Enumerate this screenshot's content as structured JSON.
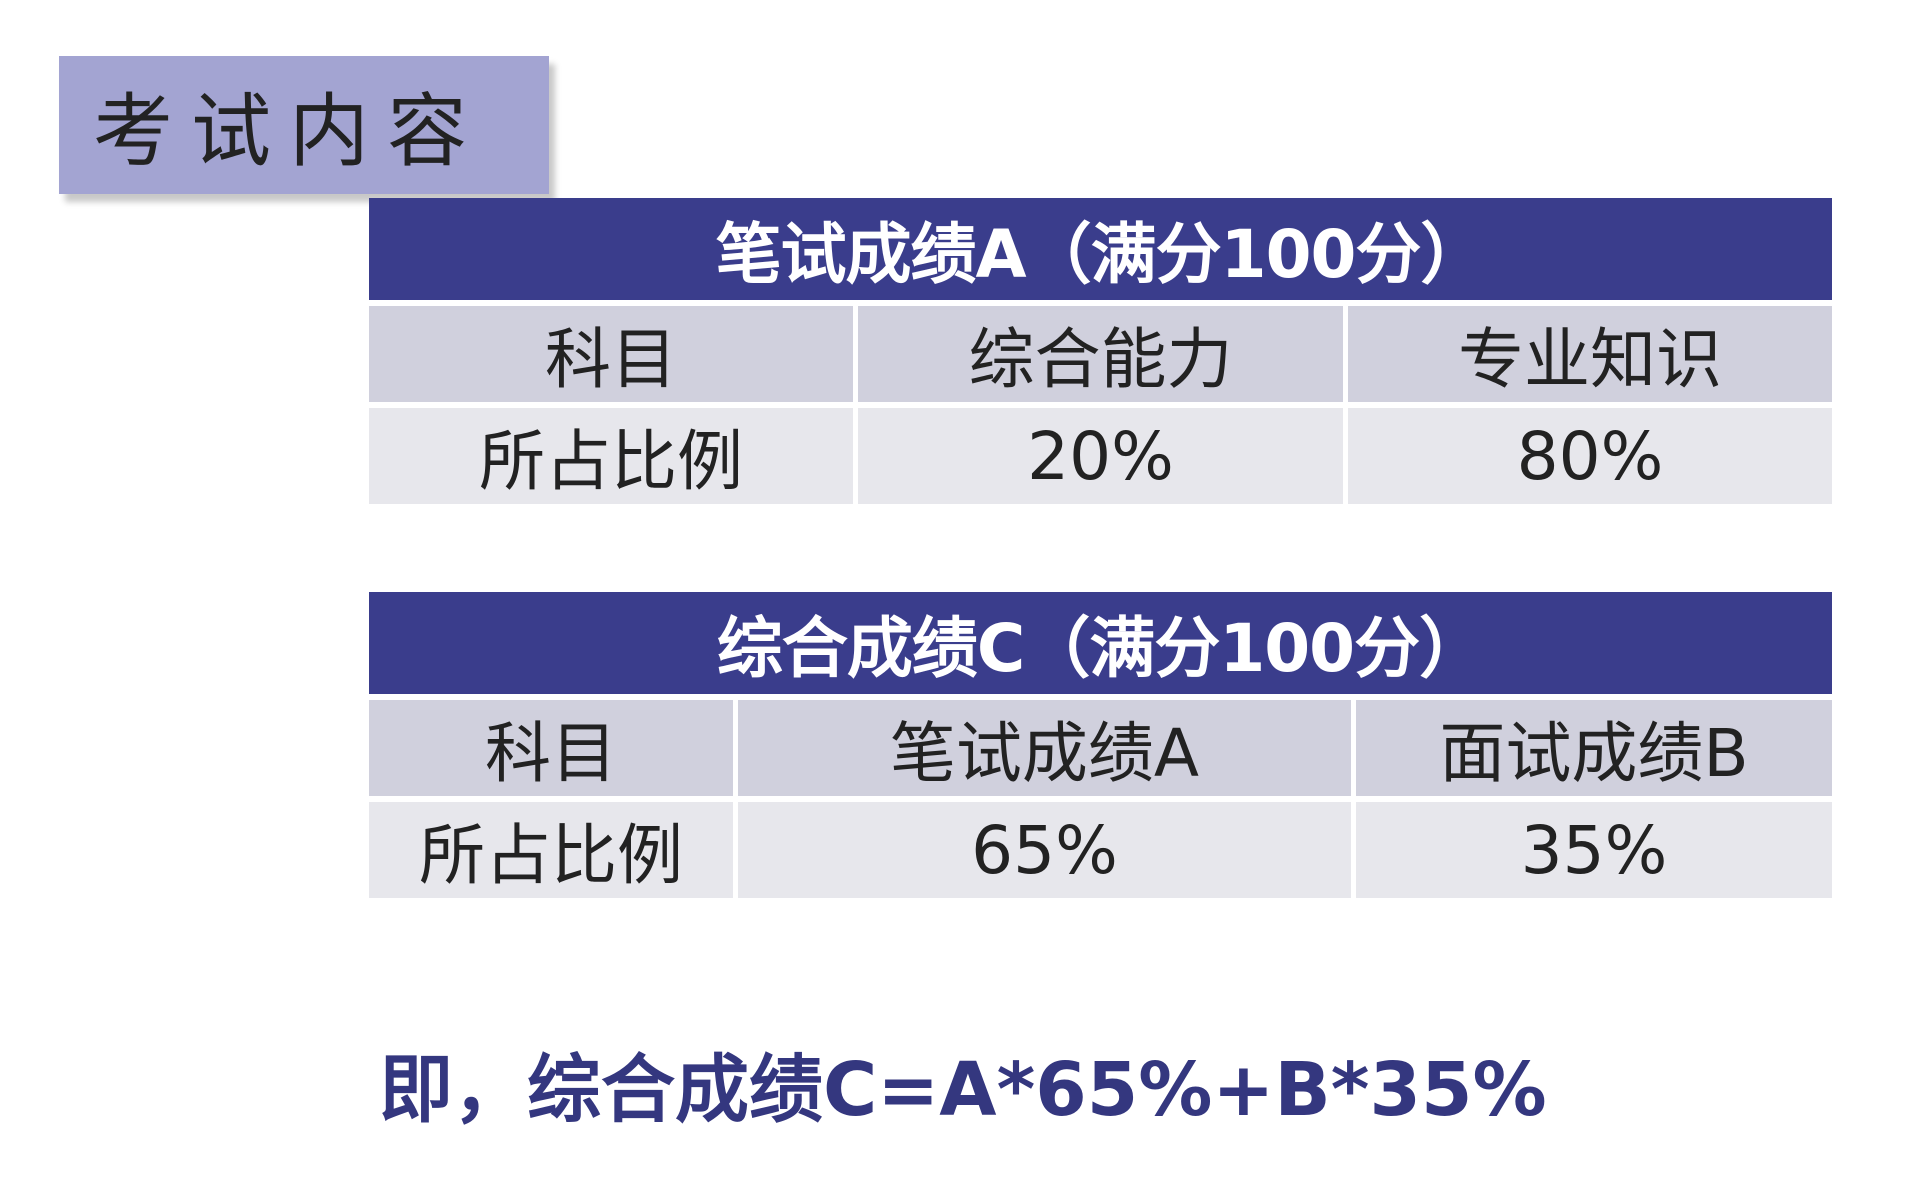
{
  "section_title": "考试内容",
  "table_a": {
    "title": "笔试成绩A（满分100分）",
    "header_row": [
      "科目",
      "综合能力",
      "专业知识"
    ],
    "data_row": [
      "所占比例",
      "20%",
      "80%"
    ]
  },
  "table_c": {
    "title": "综合成绩C（满分100分）",
    "header_row": [
      "科目",
      "笔试成绩A",
      "面试成绩B"
    ],
    "data_row": [
      "所占比例",
      "65%",
      "35%"
    ]
  },
  "formula": "即，综合成绩C=A*65%+B*35%",
  "colors": {
    "tag_background": "#a3a4d2",
    "header_background": "#3a3d8c",
    "row_head_background": "#d0d0dd",
    "row_data_background": "#e7e7ec",
    "formula_text": "#34377f"
  }
}
